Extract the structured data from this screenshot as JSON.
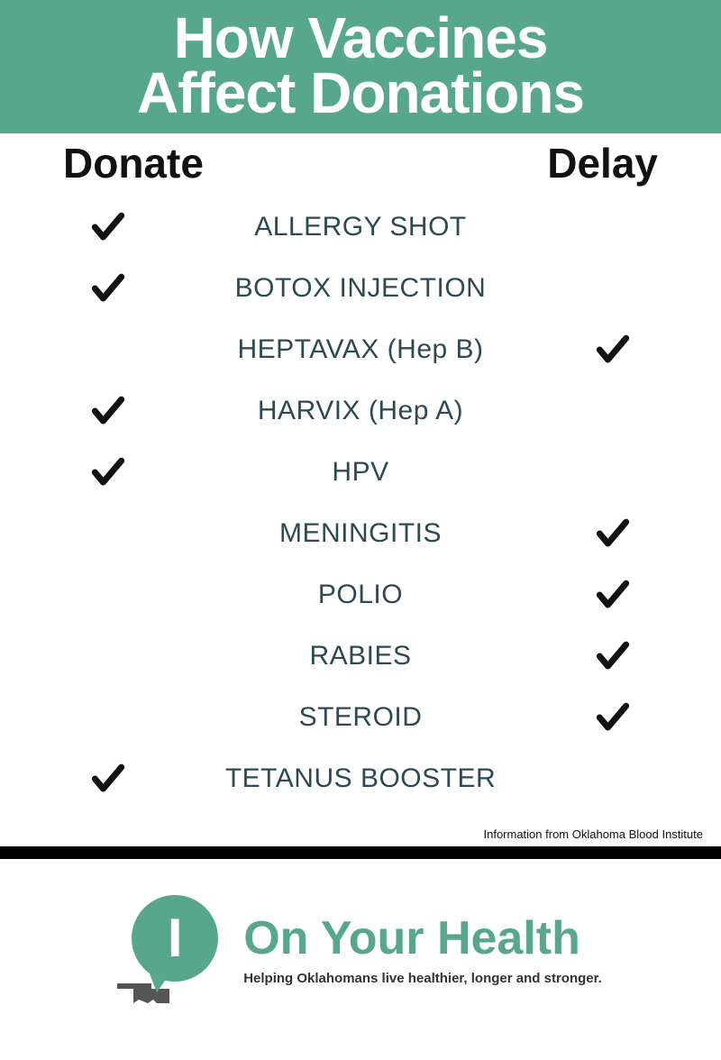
{
  "colors": {
    "header_bg": "#56a78c",
    "header_text": "#ffffff",
    "col_label": "#111111",
    "vaccine_text": "#2d4a52",
    "check": "#111111",
    "brand_green": "#56a78c",
    "brand_gray": "#555555",
    "divider": "#000000"
  },
  "header": {
    "line1": "How Vaccines",
    "line2": "Affect Donations",
    "fontsize": 64
  },
  "columns": {
    "left": "Donate",
    "right": "Delay",
    "fontsize": 46
  },
  "vaccine_fontsize": 30,
  "rows": [
    {
      "name": "ALLERGY SHOT",
      "donate": true,
      "delay": false
    },
    {
      "name": "BOTOX INJECTION",
      "donate": true,
      "delay": false
    },
    {
      "name": "HEPTAVAX (Hep B)",
      "donate": false,
      "delay": true
    },
    {
      "name": "HARVIX (Hep A)",
      "donate": true,
      "delay": false
    },
    {
      "name": "HPV",
      "donate": true,
      "delay": false
    },
    {
      "name": "MENINGITIS",
      "donate": false,
      "delay": true
    },
    {
      "name": "POLIO",
      "donate": false,
      "delay": true
    },
    {
      "name": "RABIES",
      "donate": false,
      "delay": true
    },
    {
      "name": "STEROID",
      "donate": false,
      "delay": true
    },
    {
      "name": "TETANUS BOOSTER",
      "donate": true,
      "delay": false
    }
  ],
  "source": {
    "text": "Information from Oklahoma Blood Institute",
    "fontsize": 13
  },
  "divider_height": 14,
  "footer": {
    "brand": "On Your Health",
    "brand_fontsize": 52,
    "tagline": "Helping Oklahomans live healthier, longer and stronger.",
    "tagline_fontsize": 15,
    "bubble_letter": "I"
  }
}
